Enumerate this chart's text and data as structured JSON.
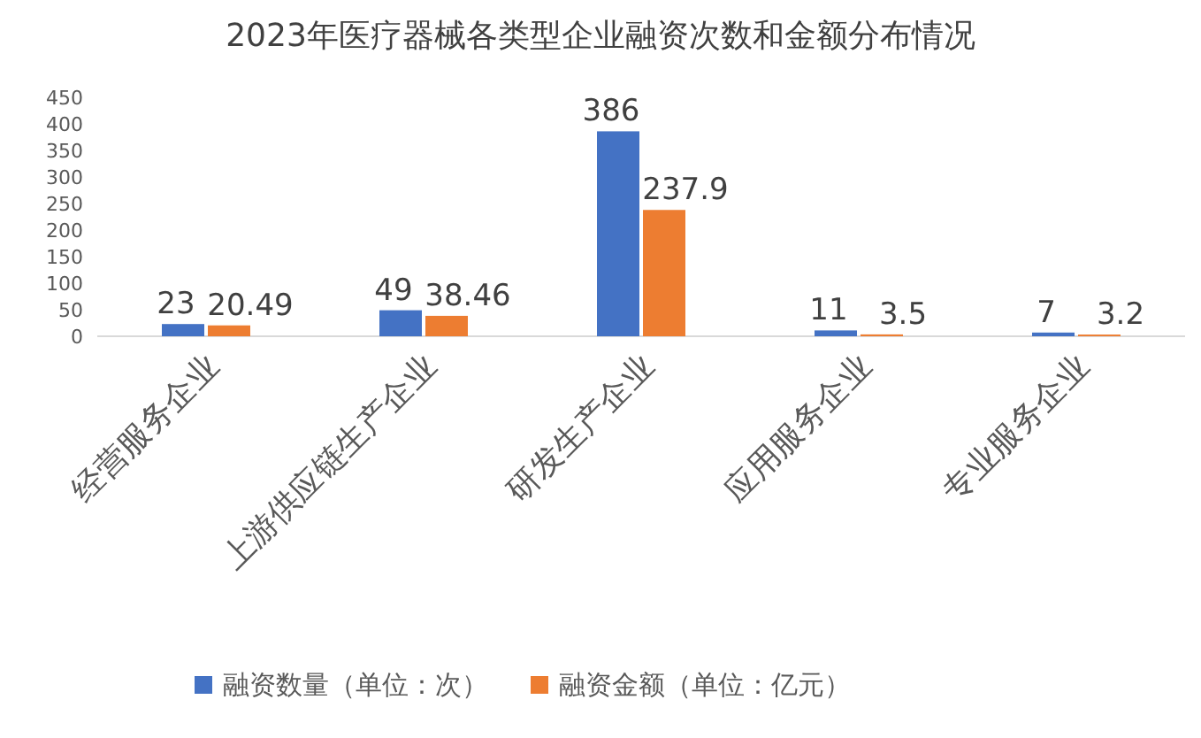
{
  "chart_data": {
    "type": "bar",
    "title": "2023年医疗器械各类型企业融资次数和金额分布情况",
    "categories": [
      "经营服务企业",
      "上游供应链生产企业",
      "研发生产企业",
      "应用服务企业",
      "专业服务企业"
    ],
    "series": [
      {
        "name": "融资数量（单位：次）",
        "color": "#4472c4",
        "values": [
          23,
          49,
          386,
          11,
          7
        ]
      },
      {
        "name": "融资金额（单位：亿元）",
        "color": "#ed7d31",
        "values": [
          20.49,
          38.46,
          237.9,
          3.5,
          3.2
        ]
      }
    ],
    "ylim": [
      0,
      450
    ],
    "yticks": [
      0,
      50,
      100,
      150,
      200,
      250,
      300,
      350,
      400,
      450
    ],
    "data_labels": true,
    "legend": "bottom",
    "grid": false
  }
}
